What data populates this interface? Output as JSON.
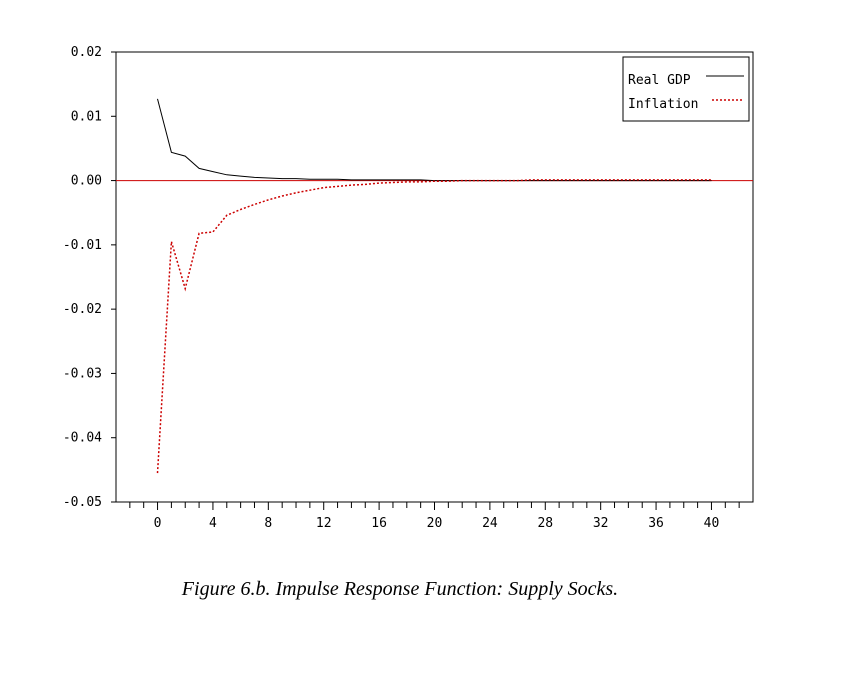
{
  "caption": "Figure 6.b.  Impulse Response Function: Supply Socks.",
  "chart_data": {
    "type": "line",
    "title": "",
    "xlabel": "",
    "ylabel": "",
    "xlim": [
      -3,
      43
    ],
    "ylim": [
      -0.05,
      0.02
    ],
    "x_ticks": [
      0,
      4,
      8,
      12,
      16,
      20,
      24,
      28,
      32,
      36,
      40
    ],
    "y_ticks": [
      "0.02",
      "0.01",
      "0.00",
      "-0.01",
      "-0.02",
      "-0.03",
      "-0.04",
      "-0.05"
    ],
    "zero_line_color": "#cc0000",
    "legend_position": "top-right",
    "series": [
      {
        "name": "Real GDP",
        "style": "solid",
        "color": "#000000",
        "x": [
          0,
          1,
          2,
          3,
          4,
          5,
          6,
          7,
          8,
          9,
          10,
          11,
          12,
          13,
          14,
          15,
          16,
          17,
          18,
          19,
          20,
          21,
          22,
          23,
          24,
          25,
          26,
          27,
          28,
          29,
          30,
          31,
          32,
          33,
          34,
          35,
          36,
          37,
          38,
          39,
          40
        ],
        "values": [
          0.0127,
          0.0044,
          0.0038,
          0.0019,
          0.0014,
          0.0009,
          0.0007,
          0.0005,
          0.0004,
          0.0003,
          0.0003,
          0.0002,
          0.0002,
          0.0002,
          0.0001,
          0.0001,
          0.0001,
          0.0001,
          0.0001,
          0.0001,
          0.0,
          0.0,
          0.0,
          0.0,
          0.0,
          0.0,
          0.0,
          0.0,
          0.0,
          0.0,
          0.0,
          0.0,
          0.0,
          0.0,
          0.0,
          0.0,
          0.0,
          0.0,
          0.0,
          0.0,
          0.0
        ]
      },
      {
        "name": "Inflation",
        "style": "dotted",
        "color": "#cc0000",
        "x": [
          0,
          1,
          2,
          3,
          4,
          5,
          6,
          7,
          8,
          9,
          10,
          11,
          12,
          13,
          14,
          15,
          16,
          17,
          18,
          19,
          20,
          21,
          22,
          23,
          24,
          25,
          26,
          27,
          28,
          29,
          30,
          31,
          32,
          33,
          34,
          35,
          36,
          37,
          38,
          39,
          40
        ],
        "values": [
          -0.0455,
          -0.0095,
          -0.0168,
          -0.0082,
          -0.008,
          -0.0054,
          -0.0045,
          -0.0037,
          -0.003,
          -0.0024,
          -0.0019,
          -0.0015,
          -0.0011,
          -0.0009,
          -0.0007,
          -0.0006,
          -0.0004,
          -0.0003,
          -0.0002,
          -0.0002,
          -0.0001,
          -0.0001,
          0.0,
          0.0,
          0.0,
          0.0,
          0.0,
          0.0001,
          0.0001,
          0.0001,
          0.0001,
          0.0001,
          0.0001,
          0.0001,
          0.0001,
          0.0001,
          0.0001,
          0.0001,
          0.0001,
          0.0001,
          0.0001
        ]
      }
    ]
  }
}
